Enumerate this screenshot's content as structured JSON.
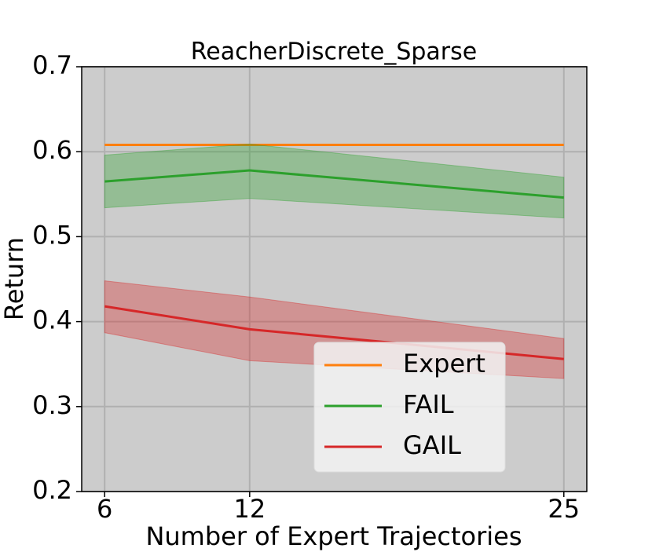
{
  "chart_data": {
    "type": "line",
    "title": "ReacherDiscrete_Sparse",
    "x_label": "Number of Expert Trajectories",
    "y_label": "Return",
    "x": [
      6,
      12,
      25
    ],
    "xlim": [
      5.05,
      25.95
    ],
    "xticks": [
      6,
      12,
      25
    ],
    "ylim": [
      0.2,
      0.7
    ],
    "yticks": [
      0.2,
      0.3,
      0.4,
      0.5,
      0.6,
      0.7
    ],
    "grid": true,
    "legend": "lower right",
    "series": [
      {
        "name": "Expert",
        "color": "#ff7f0e",
        "values": [
          0.608,
          0.608,
          0.608
        ]
      },
      {
        "name": "FAIL",
        "color": "#2ca02c",
        "values": [
          0.565,
          0.578,
          0.546
        ],
        "lower": [
          0.534,
          0.545,
          0.522
        ],
        "upper": [
          0.596,
          0.609,
          0.57
        ]
      },
      {
        "name": "GAIL",
        "color": "#d62728",
        "values": [
          0.418,
          0.391,
          0.356
        ],
        "lower": [
          0.387,
          0.354,
          0.333
        ],
        "upper": [
          0.448,
          0.429,
          0.38
        ]
      }
    ]
  }
}
